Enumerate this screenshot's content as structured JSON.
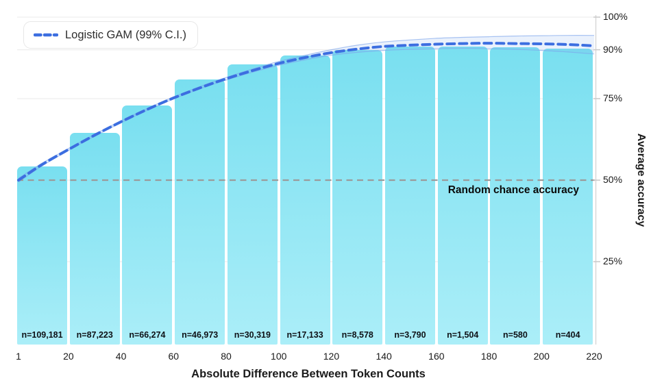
{
  "chart_data": {
    "type": "bar",
    "title": "",
    "xlabel": "Absolute Difference Between Token Counts",
    "ylabel": "Average accuracy",
    "legend_label": "Logistic GAM (99% C.I.)",
    "x_ticks": [
      1,
      20,
      40,
      60,
      80,
      100,
      120,
      140,
      160,
      180,
      200,
      220
    ],
    "y_ticks": [
      {
        "value": 100,
        "label": "100%"
      },
      {
        "value": 90,
        "label": "90%"
      },
      {
        "value": 75,
        "label": "75%"
      },
      {
        "value": 50,
        "label": "50%"
      },
      {
        "value": 25,
        "label": "25%"
      }
    ],
    "x_range": [
      1,
      220
    ],
    "y_range_pct": [
      0,
      100
    ],
    "grid_values_pct": [
      25,
      50,
      75,
      90,
      100
    ],
    "reference_line": {
      "y_pct": 50,
      "label": "Random chance accuracy"
    },
    "bins": [
      [
        1,
        20
      ],
      [
        20,
        40
      ],
      [
        40,
        60
      ],
      [
        60,
        80
      ],
      [
        80,
        100
      ],
      [
        100,
        120
      ],
      [
        120,
        140
      ],
      [
        140,
        160
      ],
      [
        160,
        180
      ],
      [
        180,
        200
      ],
      [
        200,
        220
      ]
    ],
    "bar_values_pct": [
      54.2,
      64.5,
      73.0,
      80.8,
      85.6,
      88.2,
      89.9,
      91.0,
      91.0,
      90.8,
      90.4
    ],
    "bar_count_labels": [
      "n=109,181",
      "n=87,223",
      "n=66,274",
      "n=46,973",
      "n=30,319",
      "n=17,133",
      "n=8,578",
      "n=3,790",
      "n=1,504",
      "n=580",
      "n=404"
    ],
    "gam_curve": {
      "x": [
        1,
        10,
        20,
        30,
        40,
        50,
        60,
        70,
        80,
        90,
        100,
        110,
        120,
        130,
        140,
        150,
        160,
        170,
        180,
        190,
        200,
        210,
        220
      ],
      "y_pct": [
        50.0,
        54.8,
        59.4,
        63.8,
        67.9,
        71.7,
        75.2,
        78.3,
        81.1,
        83.6,
        85.8,
        87.6,
        89.1,
        90.2,
        91.0,
        91.4,
        91.7,
        91.9,
        92.0,
        91.9,
        91.8,
        91.6,
        91.2
      ],
      "ci_upper_pct": [
        50.6,
        55.2,
        59.7,
        64.1,
        68.2,
        72.0,
        75.5,
        78.7,
        81.5,
        84.1,
        86.4,
        88.3,
        90.0,
        91.4,
        92.4,
        93.0,
        93.5,
        93.8,
        94.0,
        94.2,
        94.3,
        94.4,
        94.4
      ],
      "ci_lower_pct": [
        49.4,
        54.4,
        59.1,
        63.5,
        67.6,
        71.4,
        74.9,
        78.0,
        80.7,
        83.1,
        85.2,
        86.9,
        88.3,
        89.2,
        89.8,
        90.1,
        90.3,
        90.4,
        90.3,
        90.1,
        89.8,
        89.3,
        88.7
      ]
    },
    "colors": {
      "bar_top": "#79dff0",
      "bar_bottom": "#abeef8",
      "curve": "#3c6ee0",
      "ci_fill": "rgba(125,165,235,0.16)",
      "ci_edge": "rgba(125,165,235,0.65)",
      "reference_line": "#9b9b9b",
      "axis_line": "#d8d8d8",
      "tick_mark": "#c9c9c9",
      "grid": "#ededed",
      "text": "#1a1a1a"
    }
  }
}
